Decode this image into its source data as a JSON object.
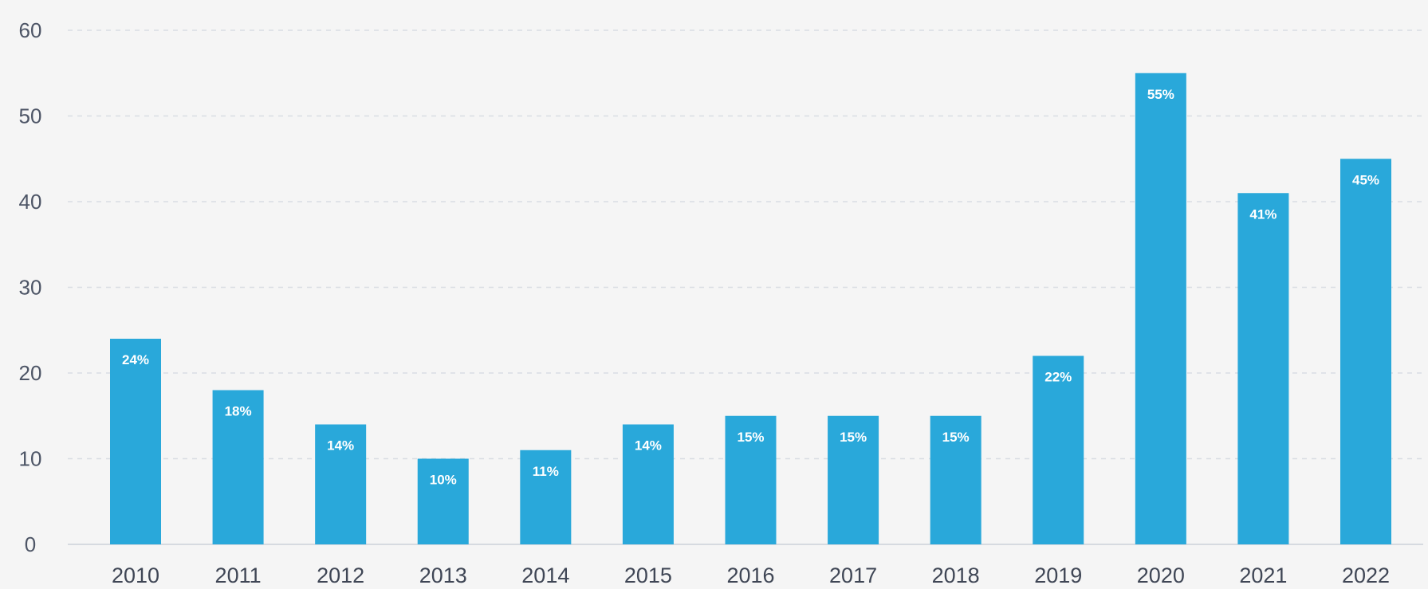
{
  "chart_data": {
    "type": "bar",
    "categories": [
      "2010",
      "2011",
      "2012",
      "2013",
      "2014",
      "2015",
      "2016",
      "2017",
      "2018",
      "2019",
      "2020",
      "2021",
      "2022"
    ],
    "values": [
      24,
      18,
      14,
      10,
      11,
      14,
      15,
      15,
      15,
      22,
      55,
      41,
      45
    ],
    "data_labels": [
      "24%",
      "18%",
      "14%",
      "10%",
      "11%",
      "14%",
      "15%",
      "15%",
      "15%",
      "22%",
      "55%",
      "41%",
      "45%"
    ],
    "yticks": [
      "0",
      "10",
      "20",
      "30",
      "40",
      "50",
      "60"
    ],
    "ylim": [
      0,
      60
    ],
    "grid": true,
    "colors": {
      "bar": "#29a8da",
      "bar_label": "#ffffff",
      "axis_text": "#4d5566",
      "grid": "#d9dde3"
    }
  }
}
